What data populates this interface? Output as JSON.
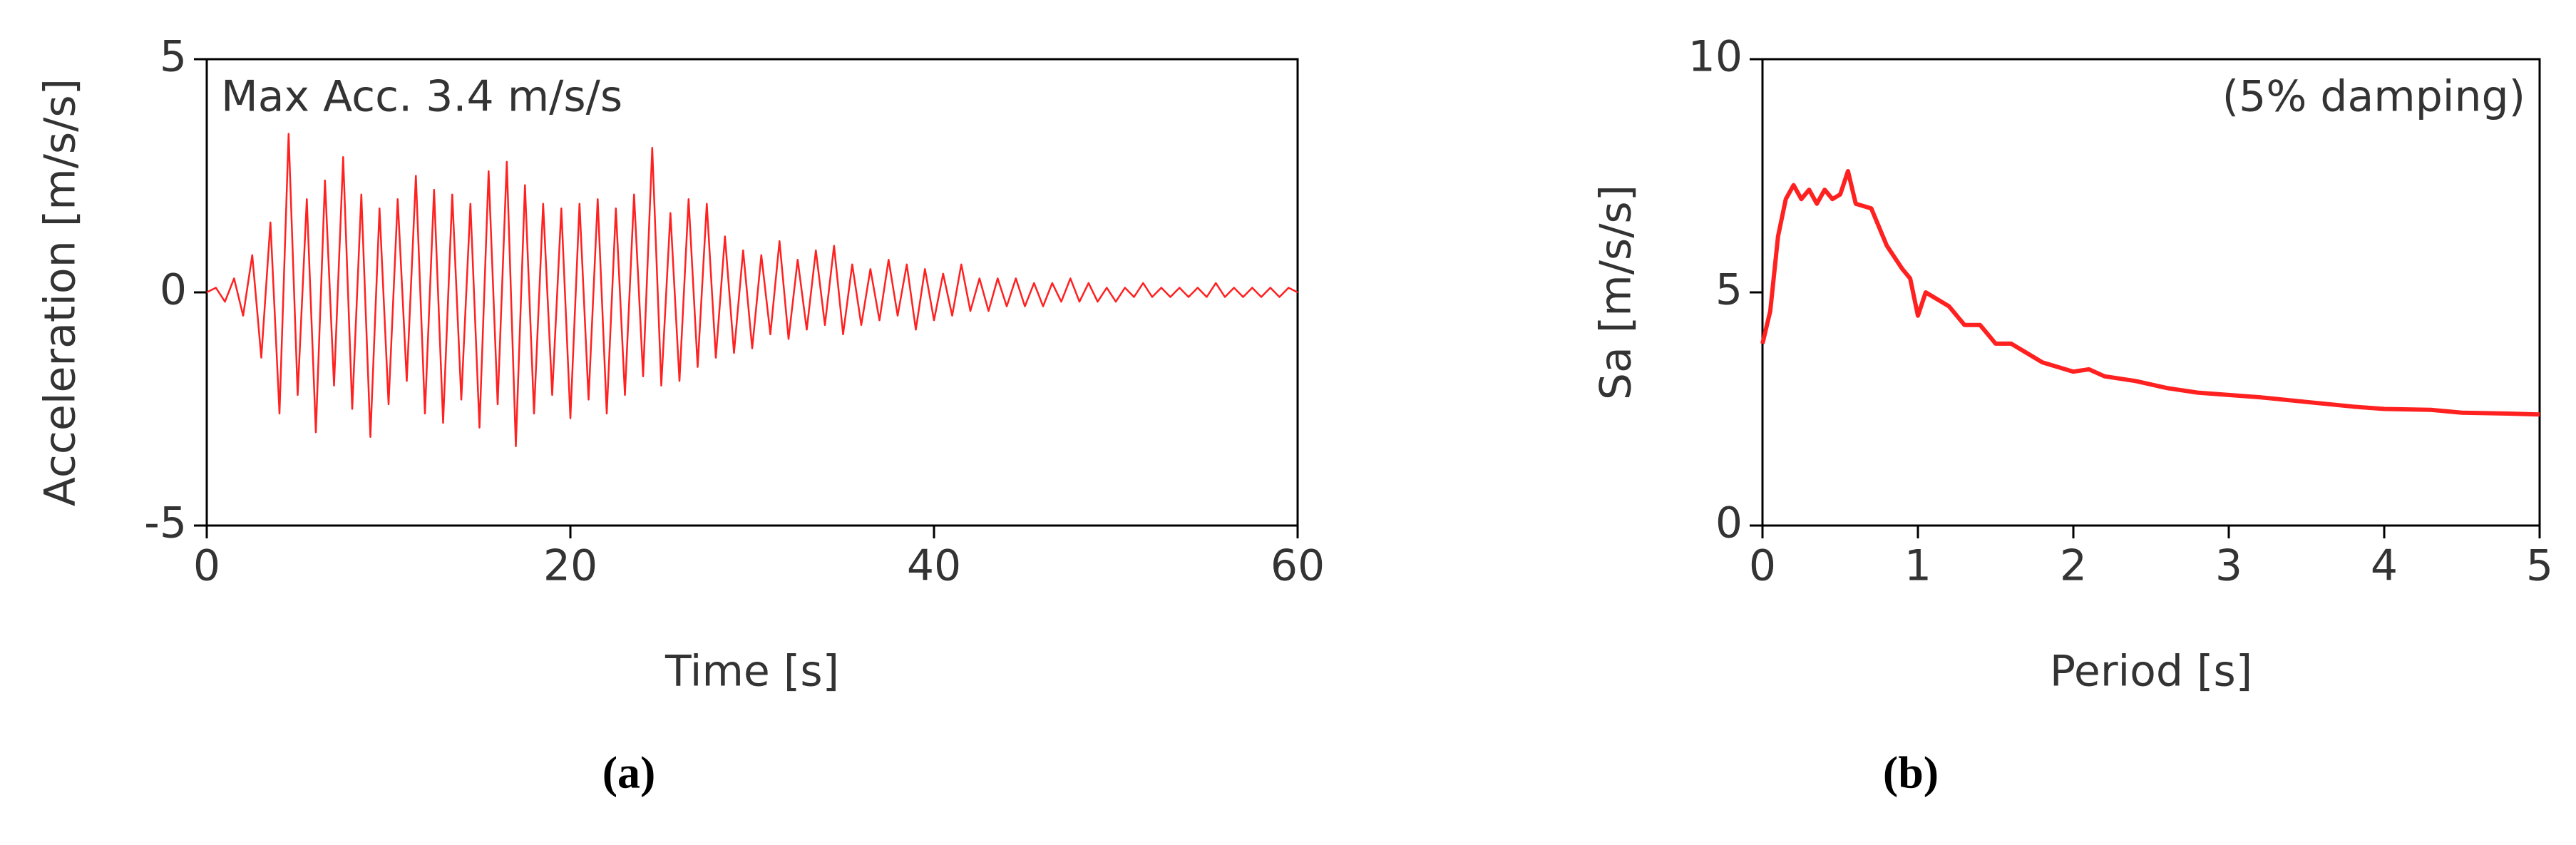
{
  "chart_data": [
    {
      "type": "line",
      "caption": "(a)",
      "annotation": "Max Acc. 3.4 m/s/s",
      "xlabel": "Time [s]",
      "ylabel": "Acceleration [m/s/s]",
      "color": "#ff2020",
      "xlim": [
        0,
        60
      ],
      "xticks": [
        0,
        20,
        40,
        60
      ],
      "ylim": [
        -5,
        5
      ],
      "yticks": [
        -5,
        0,
        5
      ],
      "x": [
        0,
        0.5,
        1,
        1.5,
        2,
        2.5,
        3,
        3.5,
        4,
        4.5,
        5,
        5.5,
        6,
        6.5,
        7,
        7.5,
        8,
        8.5,
        9,
        9.5,
        10,
        10.5,
        11,
        11.5,
        12,
        12.5,
        13,
        13.5,
        14,
        14.5,
        15,
        15.5,
        16,
        16.5,
        17,
        17.5,
        18,
        18.5,
        19,
        19.5,
        20,
        20.5,
        21,
        21.5,
        22,
        22.5,
        23,
        23.5,
        24,
        24.5,
        25,
        25.5,
        26,
        26.5,
        27,
        27.5,
        28,
        28.5,
        29,
        29.5,
        30,
        30.5,
        31,
        31.5,
        32,
        32.5,
        33,
        33.5,
        34,
        34.5,
        35,
        35.5,
        36,
        36.5,
        37,
        37.5,
        38,
        38.5,
        39,
        39.5,
        40,
        40.5,
        41,
        41.5,
        42,
        42.5,
        43,
        43.5,
        44,
        44.5,
        45,
        45.5,
        46,
        46.5,
        47,
        47.5,
        48,
        48.5,
        49,
        49.5,
        50,
        50.5,
        51,
        51.5,
        52,
        52.5,
        53,
        53.5,
        54,
        54.5,
        55,
        55.5,
        56,
        56.5,
        57,
        57.5,
        58,
        58.5,
        59,
        59.5,
        60
      ],
      "values": [
        0,
        0.1,
        -0.2,
        0.3,
        -0.5,
        0.8,
        -1.4,
        1.5,
        -2.6,
        3.4,
        -2.2,
        2.0,
        -3.0,
        2.4,
        -2.0,
        2.9,
        -2.5,
        2.1,
        -3.1,
        1.8,
        -2.4,
        2.0,
        -1.9,
        2.5,
        -2.6,
        2.2,
        -2.8,
        2.1,
        -2.3,
        1.9,
        -2.9,
        2.6,
        -2.4,
        2.8,
        -3.3,
        2.3,
        -2.6,
        1.9,
        -2.2,
        1.8,
        -2.7,
        1.9,
        -2.3,
        2.0,
        -2.6,
        1.8,
        -2.2,
        2.1,
        -1.8,
        3.1,
        -2.0,
        1.7,
        -1.9,
        2.0,
        -1.6,
        1.9,
        -1.4,
        1.2,
        -1.3,
        0.9,
        -1.2,
        0.8,
        -0.9,
        1.1,
        -1.0,
        0.7,
        -0.8,
        0.9,
        -0.7,
        1.0,
        -0.9,
        0.6,
        -0.7,
        0.5,
        -0.6,
        0.7,
        -0.5,
        0.6,
        -0.8,
        0.5,
        -0.6,
        0.4,
        -0.5,
        0.6,
        -0.4,
        0.3,
        -0.4,
        0.3,
        -0.3,
        0.3,
        -0.3,
        0.2,
        -0.3,
        0.2,
        -0.2,
        0.3,
        -0.2,
        0.2,
        -0.2,
        0.1,
        -0.2,
        0.1,
        -0.1,
        0.2,
        -0.1,
        0.1,
        -0.1,
        0.1,
        -0.1,
        0.1,
        -0.1,
        0.2,
        -0.1,
        0.1,
        -0.1,
        0.1,
        -0.1,
        0.1,
        -0.1,
        0.1,
        0
      ]
    },
    {
      "type": "line",
      "caption": "(b)",
      "annotation": "(5% damping)",
      "xlabel": "Period [s]",
      "ylabel": "Sa [m/s/s]",
      "color": "#ff2020",
      "xlim": [
        0,
        5
      ],
      "xticks": [
        0,
        1,
        2,
        3,
        4,
        5
      ],
      "ylim": [
        0,
        10
      ],
      "yticks": [
        0,
        5,
        10
      ],
      "x": [
        0,
        0.05,
        0.1,
        0.15,
        0.2,
        0.25,
        0.3,
        0.35,
        0.4,
        0.45,
        0.5,
        0.55,
        0.6,
        0.7,
        0.8,
        0.9,
        0.95,
        1.0,
        1.05,
        1.1,
        1.2,
        1.3,
        1.4,
        1.5,
        1.6,
        1.7,
        1.8,
        2.0,
        2.1,
        2.2,
        2.4,
        2.6,
        2.8,
        3.0,
        3.2,
        3.5,
        3.8,
        4.0,
        4.3,
        4.5,
        4.8,
        5.0
      ],
      "values": [
        3.9,
        4.6,
        6.2,
        7.0,
        7.3,
        7.0,
        7.2,
        6.9,
        7.2,
        7.0,
        7.1,
        7.6,
        6.9,
        6.8,
        6.0,
        5.5,
        5.3,
        4.5,
        5.0,
        4.9,
        4.7,
        4.3,
        4.3,
        3.9,
        3.9,
        3.7,
        3.5,
        3.3,
        3.35,
        3.2,
        3.1,
        2.95,
        2.85,
        2.8,
        2.75,
        2.65,
        2.55,
        2.5,
        2.48,
        2.42,
        2.4,
        2.38
      ]
    }
  ]
}
